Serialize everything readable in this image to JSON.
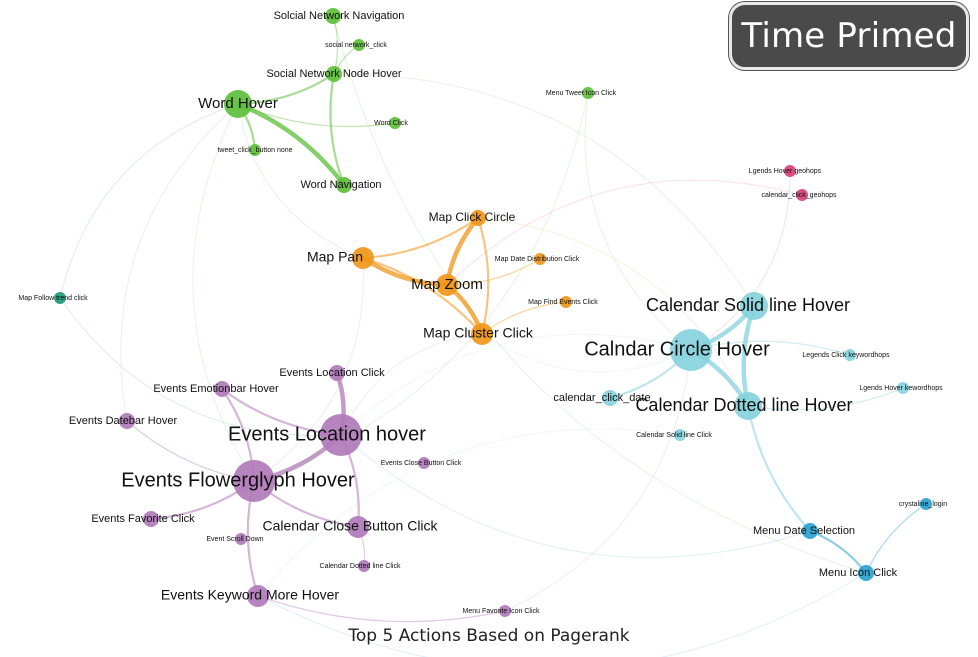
{
  "badge": {
    "label": "Time Primed"
  },
  "caption": "Top 5 Actions Based on Pagerank",
  "colors": {
    "green": "#5cbf3a",
    "orange": "#f0961a",
    "pink": "#d9407a",
    "teal": "#1e9a78",
    "cyan": "#86d2dd",
    "blue": "#2aa2cf",
    "purple": "#b07ab8"
  },
  "nodes": [
    {
      "id": "social-network-navigation",
      "label": "Solcial Network Navigation",
      "group": "green",
      "size": "small"
    },
    {
      "id": "social-network-click",
      "label": "social network_click",
      "group": "green",
      "size": "tiny"
    },
    {
      "id": "social-network-node-hover",
      "label": "Social Network Node Hover",
      "group": "green",
      "size": "small"
    },
    {
      "id": "word-hover",
      "label": "Word Hover",
      "group": "green",
      "size": "big"
    },
    {
      "id": "word-click",
      "label": "Word Click",
      "group": "green",
      "size": "tiny"
    },
    {
      "id": "tweet-click-button",
      "label": "tweet_click_button none",
      "group": "green",
      "size": "tiny"
    },
    {
      "id": "word-navigation",
      "label": "Word Navigation",
      "group": "green",
      "size": "small"
    },
    {
      "id": "menu-tweet-icon-click",
      "label": "Menu Tweet Icon Click",
      "group": "green",
      "size": "tiny"
    },
    {
      "id": "legends-hover-geohops",
      "label": "Lgends Hover geohops",
      "group": "pink",
      "size": "tiny"
    },
    {
      "id": "calendar-click-geohops",
      "label": "calendar_click_geohops",
      "group": "pink",
      "size": "tiny"
    },
    {
      "id": "map-click-circle",
      "label": "Map Click Circle",
      "group": "orange",
      "size": "small"
    },
    {
      "id": "map-pan",
      "label": "Map Pan",
      "group": "orange",
      "size": "medium"
    },
    {
      "id": "map-date-distribution-click",
      "label": "Map Date Distribution Click",
      "group": "orange",
      "size": "tiny"
    },
    {
      "id": "map-zoom",
      "label": "Map Zoom",
      "group": "orange",
      "size": "medium"
    },
    {
      "id": "map-find-events-click",
      "label": "Map Find Events Click",
      "group": "orange",
      "size": "tiny"
    },
    {
      "id": "map-cluster-click",
      "label": "Map Cluster Click",
      "group": "orange",
      "size": "medium"
    },
    {
      "id": "map-follow-trend-click",
      "label": "Map Follow trend click",
      "group": "teal",
      "size": "tiny"
    },
    {
      "id": "calendar-solid-line-hover",
      "label": "Calendar Solid line Hover",
      "group": "cyan",
      "size": "big"
    },
    {
      "id": "calendar-circle-hover",
      "label": "Calndar Circle Hover",
      "group": "cyan",
      "size": "huge"
    },
    {
      "id": "legends-click-keywordhops",
      "label": "Legends Click keywordhops",
      "group": "cyan",
      "size": "tiny"
    },
    {
      "id": "legends-hover-keywordhops",
      "label": "Lgends Hover kewordhops",
      "group": "cyan",
      "size": "tiny"
    },
    {
      "id": "calendar-click-date",
      "label": "calendar_click_date",
      "group": "cyan",
      "size": "small"
    },
    {
      "id": "calendar-dotted-line-hover",
      "label": "Calendar Dotted line Hover",
      "group": "cyan",
      "size": "big"
    },
    {
      "id": "calendar-solid-line-click",
      "label": "Calendar Solid line Click",
      "group": "cyan",
      "size": "tiny"
    },
    {
      "id": "crystalline-login",
      "label": "crystaline_login",
      "group": "blue",
      "size": "tiny"
    },
    {
      "id": "menu-date-selection",
      "label": "Menu Date Selection",
      "group": "blue",
      "size": "small"
    },
    {
      "id": "menu-icon-click",
      "label": "Menu Icon Click",
      "group": "blue",
      "size": "small"
    },
    {
      "id": "events-location-click",
      "label": "Events Location Click",
      "group": "purple",
      "size": "small"
    },
    {
      "id": "events-emotionbar-hover",
      "label": "Events Emotionbar Hover",
      "group": "purple",
      "size": "small"
    },
    {
      "id": "events-datebar-hover",
      "label": "Events Datebar Hover",
      "group": "purple",
      "size": "small"
    },
    {
      "id": "events-location-hover",
      "label": "Events Location hover",
      "group": "purple",
      "size": "huge"
    },
    {
      "id": "events-close-button-click",
      "label": "Events Close Button Click",
      "group": "purple",
      "size": "tiny"
    },
    {
      "id": "events-flowerglyph-hover",
      "label": "Events Flowerglyph Hover",
      "group": "purple",
      "size": "huge"
    },
    {
      "id": "events-favorite-click",
      "label": "Events Favorite Click",
      "group": "purple",
      "size": "small"
    },
    {
      "id": "event-scroll-down",
      "label": "Event Scroll Down",
      "group": "purple",
      "size": "tiny"
    },
    {
      "id": "calendar-close-button-click",
      "label": "Calendar Close Button Click",
      "group": "purple",
      "size": "medium"
    },
    {
      "id": "calendar-dotted-line-click",
      "label": "Calendar Dotted line Click",
      "group": "purple",
      "size": "tiny"
    },
    {
      "id": "events-keyword-more-hover",
      "label": "Events Keyword More Hover",
      "group": "purple",
      "size": "medium"
    },
    {
      "id": "menu-favorite-icon-click",
      "label": "Menu Favorite Icon Click",
      "group": "purple",
      "size": "tiny"
    }
  ],
  "edges": [
    {
      "from": "word-hover",
      "to": "word-navigation",
      "weight": "strong"
    },
    {
      "from": "word-hover",
      "to": "social-network-node-hover",
      "weight": "medium"
    },
    {
      "from": "word-hover",
      "to": "tweet-click-button",
      "weight": "medium"
    },
    {
      "from": "social-network-node-hover",
      "to": "word-navigation",
      "weight": "medium"
    },
    {
      "from": "social-network-navigation",
      "to": "social-network-node-hover",
      "weight": "light"
    },
    {
      "from": "social-network-click",
      "to": "social-network-node-hover",
      "weight": "light"
    },
    {
      "from": "word-click",
      "to": "word-hover",
      "weight": "light"
    },
    {
      "from": "map-pan",
      "to": "map-zoom",
      "weight": "strong"
    },
    {
      "from": "map-zoom",
      "to": "map-cluster-click",
      "weight": "strong"
    },
    {
      "from": "map-click-circle",
      "to": "map-zoom",
      "weight": "strong"
    },
    {
      "from": "map-pan",
      "to": "map-cluster-click",
      "weight": "medium"
    },
    {
      "from": "map-pan",
      "to": "map-click-circle",
      "weight": "medium"
    },
    {
      "from": "map-click-circle",
      "to": "map-cluster-click",
      "weight": "medium"
    },
    {
      "from": "map-zoom",
      "to": "map-date-distribution-click",
      "weight": "light"
    },
    {
      "from": "map-cluster-click",
      "to": "map-find-events-click",
      "weight": "light"
    },
    {
      "from": "calendar-circle-hover",
      "to": "calendar-solid-line-hover",
      "weight": "strong"
    },
    {
      "from": "calendar-circle-hover",
      "to": "calendar-dotted-line-hover",
      "weight": "strong"
    },
    {
      "from": "calendar-solid-line-hover",
      "to": "calendar-dotted-line-hover",
      "weight": "strong"
    },
    {
      "from": "calendar-circle-hover",
      "to": "calendar-click-date",
      "weight": "medium"
    },
    {
      "from": "calendar-dotted-line-hover",
      "to": "legends-hover-keywordhops",
      "weight": "light"
    },
    {
      "from": "calendar-circle-hover",
      "to": "legends-click-keywordhops",
      "weight": "light"
    },
    {
      "from": "calendar-dotted-line-hover",
      "to": "menu-date-selection",
      "weight": "medium"
    },
    {
      "from": "menu-date-selection",
      "to": "menu-icon-click",
      "weight": "medium"
    },
    {
      "from": "crystalline-login",
      "to": "menu-icon-click",
      "weight": "light"
    },
    {
      "from": "events-location-hover",
      "to": "events-flowerglyph-hover",
      "weight": "strong"
    },
    {
      "from": "events-location-hover",
      "to": "events-location-click",
      "weight": "strong"
    },
    {
      "from": "events-location-hover",
      "to": "calendar-close-button-click",
      "weight": "medium"
    },
    {
      "from": "events-flowerglyph-hover",
      "to": "events-emotionbar-hover",
      "weight": "medium"
    },
    {
      "from": "events-flowerglyph-hover",
      "to": "events-favorite-click",
      "weight": "medium"
    },
    {
      "from": "events-flowerglyph-hover",
      "to": "events-keyword-more-hover",
      "weight": "medium"
    },
    {
      "from": "events-flowerglyph-hover",
      "to": "events-datebar-hover",
      "weight": "light"
    },
    {
      "from": "events-flowerglyph-hover",
      "to": "calendar-close-button-click",
      "weight": "medium"
    },
    {
      "from": "events-location-hover",
      "to": "events-emotionbar-hover",
      "weight": "medium"
    },
    {
      "from": "events-keyword-more-hover",
      "to": "menu-favorite-icon-click",
      "weight": "light"
    },
    {
      "from": "calendar-close-button-click",
      "to": "calendar-dotted-line-click",
      "weight": "light"
    },
    {
      "from": "events-flowerglyph-hover",
      "to": "map-pan",
      "weight": "faint"
    },
    {
      "from": "events-location-hover",
      "to": "map-cluster-click",
      "weight": "faint"
    },
    {
      "from": "word-hover",
      "to": "map-pan",
      "weight": "faint"
    },
    {
      "from": "calendar-circle-hover",
      "to": "map-cluster-click",
      "weight": "faint"
    },
    {
      "from": "calendar-circle-hover",
      "to": "events-location-hover",
      "weight": "faint"
    },
    {
      "from": "menu-icon-click",
      "to": "events-keyword-more-hover",
      "weight": "faint"
    },
    {
      "from": "word-hover",
      "to": "events-flowerglyph-hover",
      "weight": "faint"
    },
    {
      "from": "social-network-node-hover",
      "to": "calendar-solid-line-hover",
      "weight": "faint"
    },
    {
      "from": "menu-tweet-icon-click",
      "to": "calendar-circle-hover",
      "weight": "faint"
    },
    {
      "from": "legends-hover-geohops",
      "to": "calendar-circle-hover",
      "weight": "faint"
    },
    {
      "from": "map-follow-trend-click",
      "to": "events-location-hover",
      "weight": "faint"
    },
    {
      "from": "map-follow-trend-click",
      "to": "word-hover",
      "weight": "faint"
    },
    {
      "from": "menu-favorite-icon-click",
      "to": "calendar-circle-hover",
      "weight": "faint"
    },
    {
      "from": "menu-date-selection",
      "to": "events-location-hover",
      "weight": "faint"
    },
    {
      "from": "calendar-click-geohops",
      "to": "map-zoom",
      "weight": "faint"
    },
    {
      "from": "events-datebar-hover",
      "to": "word-hover",
      "weight": "faint"
    },
    {
      "from": "social-network-navigation",
      "to": "menu-icon-click",
      "weight": "faint"
    },
    {
      "from": "menu-tweet-icon-click",
      "to": "events-flowerglyph-hover",
      "weight": "faint"
    },
    {
      "from": "calendar-solid-line-click",
      "to": "events-keyword-more-hover",
      "weight": "faint"
    },
    {
      "from": "map-click-circle",
      "to": "calendar-dotted-line-hover",
      "weight": "faint"
    }
  ]
}
